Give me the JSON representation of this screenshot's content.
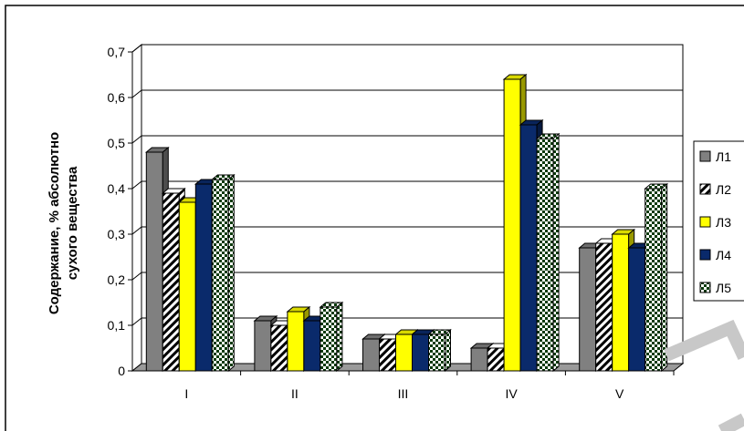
{
  "chart_data": {
    "type": "bar",
    "categories": [
      "I",
      "II",
      "III",
      "IV",
      "V"
    ],
    "series": [
      {
        "name": "Л1",
        "values": [
          0.48,
          0.11,
          0.07,
          0.05,
          0.27
        ],
        "color": "#808080",
        "pattern": "solid"
      },
      {
        "name": "Л2",
        "values": [
          0.39,
          0.1,
          0.07,
          0.05,
          0.28
        ],
        "color": "#000000",
        "pattern": "diagonal-stripes"
      },
      {
        "name": "Л3",
        "values": [
          0.37,
          0.13,
          0.08,
          0.64,
          0.3
        ],
        "color": "#ffff00",
        "pattern": "solid"
      },
      {
        "name": "Л4",
        "values": [
          0.41,
          0.11,
          0.08,
          0.54,
          0.27
        ],
        "color": "#0a2a6b",
        "pattern": "solid"
      },
      {
        "name": "Л5",
        "values": [
          0.42,
          0.14,
          0.08,
          0.51,
          0.4
        ],
        "color": "#0b3a0b",
        "pattern": "checkerboard"
      }
    ],
    "yticks": [
      "0",
      "0,1",
      "0,2",
      "0,3",
      "0,4",
      "0,5",
      "0,6",
      "0,7"
    ],
    "ylabel_lines": [
      "Содержание, % абсолютно",
      "сухого вещества"
    ],
    "xlabel": "",
    "ylim": [
      0,
      0.7
    ],
    "grid": true,
    "legend_position": "right"
  }
}
